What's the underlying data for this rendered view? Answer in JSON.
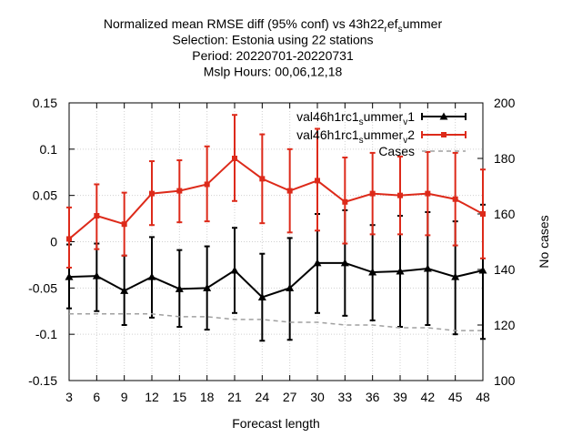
{
  "chart_data": {
    "type": "line",
    "title_lines": [
      "Normalized mean RMSE diff (95% conf) vs 43h22_ref_summer",
      "Selection: Estonia using    22 stations",
      "Period: 20220701-20220731",
      "Mslp  Hours:  00,06,12,18"
    ],
    "xlabel": "Forecast length",
    "ylabel": "",
    "y2label": "No cases",
    "x": [
      3,
      6,
      9,
      12,
      15,
      18,
      21,
      24,
      27,
      30,
      33,
      36,
      39,
      42,
      45,
      48
    ],
    "xlim": [
      3,
      48
    ],
    "ylim": [
      -0.15,
      0.15
    ],
    "y2lim": [
      100,
      200
    ],
    "x_ticks": [
      "3",
      "6",
      "9",
      "12",
      "15",
      "18",
      "21",
      "24",
      "27",
      "30",
      "33",
      "36",
      "39",
      "42",
      "45",
      "48"
    ],
    "y_ticks": [
      "0.15",
      "0.1",
      "0.05",
      "0",
      "-0.05",
      "-0.1",
      "-0.15"
    ],
    "y2_ticks": [
      "200",
      "180",
      "160",
      "140",
      "120",
      "100"
    ],
    "legend_position": "top-right",
    "series": [
      {
        "name": "val46h1rc1_summer_v1",
        "legend_parts": [
          [
            "val46h1rc1",
            "n"
          ],
          [
            "s",
            "sub"
          ],
          [
            "ummer",
            "n"
          ],
          [
            "v",
            "sub"
          ],
          [
            "1",
            "n"
          ]
        ],
        "axis": "y",
        "color": "#000000",
        "marker": "triangle",
        "values": [
          -0.038,
          -0.037,
          -0.053,
          -0.038,
          -0.051,
          -0.05,
          -0.031,
          -0.06,
          -0.05,
          -0.023,
          -0.023,
          -0.033,
          -0.032,
          -0.029,
          -0.038,
          -0.031
        ],
        "lower": [
          -0.072,
          -0.075,
          -0.09,
          -0.082,
          -0.092,
          -0.095,
          -0.077,
          -0.107,
          -0.106,
          -0.077,
          -0.08,
          -0.085,
          -0.092,
          -0.09,
          -0.1,
          -0.105
        ],
        "upper": [
          -0.003,
          -0.002,
          -0.015,
          0.005,
          -0.009,
          -0.005,
          0.015,
          -0.013,
          0.004,
          0.03,
          0.034,
          0.018,
          0.028,
          0.032,
          0.022,
          0.04
        ]
      },
      {
        "name": "val46h1rc1_summer_v2",
        "legend_parts": [
          [
            "val46h1rc1",
            "n"
          ],
          [
            "s",
            "sub"
          ],
          [
            "ummer",
            "n"
          ],
          [
            "v",
            "sub"
          ],
          [
            "2",
            "n"
          ]
        ],
        "axis": "y",
        "color": "#dd2a1a",
        "marker": "square",
        "values": [
          0.003,
          0.028,
          0.019,
          0.052,
          0.055,
          0.062,
          0.09,
          0.068,
          0.055,
          0.066,
          0.043,
          0.052,
          0.05,
          0.052,
          0.046,
          0.03
        ],
        "lower": [
          -0.028,
          -0.008,
          -0.015,
          0.018,
          0.021,
          0.022,
          0.044,
          0.02,
          0.01,
          0.012,
          -0.002,
          0.008,
          0.008,
          0.007,
          -0.004,
          -0.018
        ],
        "upper": [
          0.037,
          0.062,
          0.053,
          0.087,
          0.088,
          0.103,
          0.137,
          0.116,
          0.1,
          0.122,
          0.091,
          0.096,
          0.092,
          0.097,
          0.096,
          0.078
        ]
      },
      {
        "name": "Cases",
        "legend_parts": [
          [
            "Cases",
            "n"
          ]
        ],
        "axis": "y2",
        "color": "#a0a0a0",
        "marker": "none",
        "dashed": true,
        "values": [
          124,
          124,
          124,
          124,
          123,
          123,
          122,
          122,
          121,
          121,
          120,
          120,
          119,
          119,
          118,
          118
        ]
      }
    ]
  }
}
